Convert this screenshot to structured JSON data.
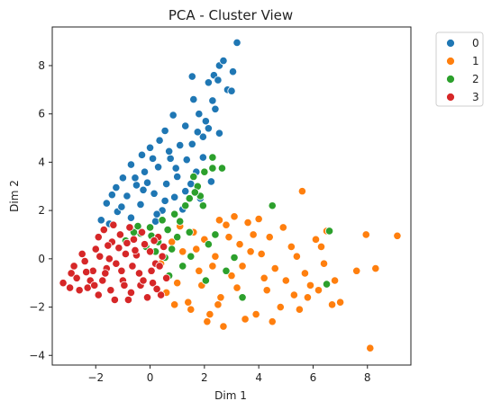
{
  "chart_data": {
    "type": "scatter",
    "title": "PCA - Cluster View",
    "xlabel": "Dim 1",
    "ylabel": "Dim 2",
    "xlim": [
      -3.6,
      9.6
    ],
    "ylim": [
      -4.4,
      9.6
    ],
    "xticks": [
      -2,
      0,
      2,
      4,
      6,
      8
    ],
    "yticks": [
      -4,
      -2,
      0,
      2,
      4,
      6,
      8
    ],
    "xtick_labels": [
      "−2",
      "0",
      "2",
      "4",
      "6",
      "8"
    ],
    "ytick_labels": [
      "−4",
      "−2",
      "0",
      "2",
      "4",
      "6",
      "8"
    ],
    "grid": false,
    "legend_position": "outside-top-right",
    "series": [
      {
        "name": "0",
        "color": "#1f77b4",
        "points": [
          [
            3.2,
            8.95
          ],
          [
            2.55,
            8.0
          ],
          [
            2.7,
            8.2
          ],
          [
            3.05,
            7.75
          ],
          [
            1.55,
            7.55
          ],
          [
            2.35,
            7.6
          ],
          [
            2.15,
            7.3
          ],
          [
            2.5,
            7.4
          ],
          [
            2.85,
            7.0
          ],
          [
            3.0,
            6.95
          ],
          [
            1.6,
            6.6
          ],
          [
            2.3,
            6.55
          ],
          [
            1.8,
            6.0
          ],
          [
            2.4,
            6.2
          ],
          [
            0.85,
            5.95
          ],
          [
            1.3,
            5.5
          ],
          [
            2.15,
            5.4
          ],
          [
            0.55,
            5.3
          ],
          [
            1.95,
            5.05
          ],
          [
            2.55,
            5.2
          ],
          [
            0.35,
            4.9
          ],
          [
            1.55,
            4.75
          ],
          [
            0.0,
            4.6
          ],
          [
            1.1,
            4.7
          ],
          [
            -0.3,
            4.3
          ],
          [
            0.75,
            4.15
          ],
          [
            1.35,
            4.1
          ],
          [
            -0.7,
            3.9
          ],
          [
            0.3,
            3.8
          ],
          [
            -0.2,
            3.6
          ],
          [
            1.0,
            3.4
          ],
          [
            -1.0,
            3.35
          ],
          [
            0.6,
            3.1
          ],
          [
            -0.5,
            3.05
          ],
          [
            -1.25,
            2.95
          ],
          [
            0.15,
            2.7
          ],
          [
            -0.85,
            2.6
          ],
          [
            0.9,
            2.55
          ],
          [
            -1.6,
            2.3
          ],
          [
            -0.35,
            2.25
          ],
          [
            0.45,
            2.0
          ],
          [
            -1.2,
            1.95
          ],
          [
            -1.8,
            1.6
          ],
          [
            -0.7,
            1.7
          ],
          [
            0.2,
            1.55
          ],
          [
            -1.5,
            1.45
          ],
          [
            1.3,
            2.8
          ],
          [
            1.7,
            3.6
          ],
          [
            1.95,
            4.2
          ],
          [
            2.25,
            3.2
          ],
          [
            -0.1,
            3.15
          ],
          [
            0.55,
            2.4
          ],
          [
            -1.05,
            2.15
          ],
          [
            1.2,
            2.05
          ],
          [
            1.85,
            2.5
          ],
          [
            0.1,
            4.15
          ],
          [
            -0.55,
            3.35
          ],
          [
            0.95,
            3.75
          ],
          [
            1.5,
            3.1
          ],
          [
            -1.4,
            2.65
          ],
          [
            0.7,
            4.45
          ],
          [
            0.25,
            1.85
          ],
          [
            -0.25,
            2.85
          ],
          [
            2.05,
            5.7
          ],
          [
            1.75,
            5.25
          ]
        ]
      },
      {
        "name": "1",
        "color": "#ff7f0e",
        "points": [
          [
            5.6,
            2.8
          ],
          [
            9.1,
            0.95
          ],
          [
            8.1,
            -3.7
          ],
          [
            7.95,
            1.0
          ],
          [
            8.3,
            -0.4
          ],
          [
            7.6,
            -0.5
          ],
          [
            6.8,
            -0.9
          ],
          [
            6.5,
            1.15
          ],
          [
            6.7,
            -1.9
          ],
          [
            6.1,
            0.8
          ],
          [
            6.4,
            -0.2
          ],
          [
            5.9,
            -1.1
          ],
          [
            5.5,
            -2.1
          ],
          [
            5.2,
            0.5
          ],
          [
            4.9,
            1.3
          ],
          [
            4.6,
            -0.4
          ],
          [
            4.3,
            -1.3
          ],
          [
            4.1,
            0.2
          ],
          [
            3.8,
            1.0
          ],
          [
            3.5,
            -2.5
          ],
          [
            3.3,
            0.6
          ],
          [
            3.0,
            -0.7
          ],
          [
            2.8,
            1.4
          ],
          [
            2.6,
            -1.6
          ],
          [
            2.4,
            0.1
          ],
          [
            2.2,
            -2.3
          ],
          [
            2.0,
            0.8
          ],
          [
            1.8,
            -0.5
          ],
          [
            1.6,
            1.1
          ],
          [
            1.4,
            -1.8
          ],
          [
            1.2,
            0.3
          ],
          [
            1.0,
            -1.0
          ],
          [
            0.8,
            0.7
          ],
          [
            0.6,
            -1.4
          ],
          [
            0.4,
            -0.2
          ],
          [
            1.1,
            1.35
          ],
          [
            2.55,
            1.6
          ],
          [
            3.1,
            1.75
          ],
          [
            3.6,
            1.5
          ],
          [
            4.0,
            1.65
          ],
          [
            4.8,
            -2.0
          ],
          [
            5.3,
            -1.5
          ],
          [
            5.7,
            -0.6
          ],
          [
            6.2,
            -1.3
          ],
          [
            7.0,
            -1.8
          ],
          [
            2.7,
            -2.8
          ],
          [
            2.1,
            -2.6
          ],
          [
            3.9,
            -2.3
          ],
          [
            4.5,
            -2.6
          ],
          [
            5.0,
            -0.9
          ],
          [
            3.2,
            -1.2
          ],
          [
            2.3,
            -0.3
          ],
          [
            1.5,
            -2.1
          ],
          [
            3.7,
            0.3
          ],
          [
            4.2,
            -0.8
          ],
          [
            2.9,
            0.9
          ],
          [
            1.9,
            -1.1
          ],
          [
            5.4,
            0.1
          ],
          [
            6.3,
            0.5
          ],
          [
            4.4,
            0.9
          ],
          [
            3.4,
            -0.3
          ],
          [
            2.5,
            -1.9
          ],
          [
            1.7,
            0.4
          ],
          [
            0.9,
            -1.9
          ],
          [
            5.8,
            -1.6
          ]
        ]
      },
      {
        "name": "2",
        "color": "#2ca02c",
        "points": [
          [
            2.3,
            3.75
          ],
          [
            2.65,
            3.75
          ],
          [
            2.3,
            4.2
          ],
          [
            2.0,
            3.6
          ],
          [
            1.6,
            3.4
          ],
          [
            1.75,
            3.0
          ],
          [
            1.85,
            2.6
          ],
          [
            1.45,
            2.5
          ],
          [
            1.3,
            2.2
          ],
          [
            1.95,
            2.2
          ],
          [
            0.9,
            1.85
          ],
          [
            0.45,
            1.6
          ],
          [
            0.0,
            1.3
          ],
          [
            -0.35,
            1.05
          ],
          [
            0.65,
            1.2
          ],
          [
            0.3,
            0.7
          ],
          [
            -0.15,
            0.5
          ],
          [
            1.0,
            0.9
          ],
          [
            1.5,
            0.1
          ],
          [
            2.15,
            0.6
          ],
          [
            4.5,
            2.2
          ],
          [
            6.6,
            1.15
          ],
          [
            6.5,
            -1.05
          ],
          [
            3.1,
            0.05
          ],
          [
            2.8,
            -0.5
          ],
          [
            -0.6,
            1.1
          ],
          [
            -0.9,
            0.75
          ],
          [
            0.8,
            0.4
          ],
          [
            1.2,
            -0.3
          ],
          [
            2.4,
            1.0
          ],
          [
            1.65,
            2.75
          ],
          [
            0.05,
            0.95
          ],
          [
            -0.45,
            1.35
          ],
          [
            1.1,
            1.55
          ],
          [
            0.55,
            0.05
          ],
          [
            3.4,
            -1.6
          ],
          [
            2.05,
            -0.9
          ],
          [
            0.7,
            -0.7
          ],
          [
            1.45,
            1.1
          ],
          [
            0.2,
            0.3
          ]
        ]
      },
      {
        "name": "3",
        "color": "#d62728",
        "points": [
          [
            -3.2,
            -1.0
          ],
          [
            -2.9,
            -0.6
          ],
          [
            -2.6,
            -1.3
          ],
          [
            -2.4,
            -0.1
          ],
          [
            -2.2,
            -0.9
          ],
          [
            -2.0,
            0.4
          ],
          [
            -1.9,
            -1.5
          ],
          [
            -1.7,
            1.2
          ],
          [
            -1.6,
            -0.4
          ],
          [
            -1.4,
            0.7
          ],
          [
            -1.3,
            -1.7
          ],
          [
            -1.1,
            1.0
          ],
          [
            -1.0,
            -0.9
          ],
          [
            -0.9,
            0.2
          ],
          [
            -0.7,
            -1.4
          ],
          [
            -0.6,
            0.8
          ],
          [
            -0.4,
            -0.6
          ],
          [
            -0.3,
            1.1
          ],
          [
            -0.1,
            -1.6
          ],
          [
            0.0,
            0.3
          ],
          [
            0.1,
            -1.0
          ],
          [
            0.2,
            -0.2
          ],
          [
            0.3,
            0.9
          ],
          [
            0.4,
            -1.5
          ],
          [
            0.5,
            0.5
          ],
          [
            0.6,
            -0.8
          ],
          [
            -2.7,
            -0.8
          ],
          [
            -2.5,
            0.2
          ],
          [
            -2.3,
            -1.2
          ],
          [
            -2.1,
            -0.5
          ],
          [
            -1.85,
            0.1
          ],
          [
            -1.75,
            -0.9
          ],
          [
            -1.55,
            0.55
          ],
          [
            -1.45,
            -1.3
          ],
          [
            -1.25,
            -0.2
          ],
          [
            -1.15,
            0.45
          ],
          [
            -0.95,
            -1.1
          ],
          [
            -0.85,
            0.65
          ],
          [
            -0.65,
            -0.3
          ],
          [
            -0.5,
            0.15
          ],
          [
            -0.35,
            -1.1
          ],
          [
            -0.2,
            0.6
          ],
          [
            0.05,
            -0.5
          ],
          [
            0.25,
            -1.25
          ],
          [
            0.45,
            0.1
          ],
          [
            -2.95,
            -1.2
          ],
          [
            -2.8,
            -0.3
          ],
          [
            -1.9,
            0.9
          ],
          [
            -1.65,
            -0.6
          ],
          [
            -1.35,
            1.4
          ],
          [
            -1.05,
            -0.5
          ],
          [
            -0.8,
            -1.7
          ],
          [
            -0.55,
            0.35
          ],
          [
            -0.25,
            -0.9
          ],
          [
            0.15,
            0.75
          ],
          [
            -2.35,
            -0.55
          ],
          [
            -2.05,
            -1.1
          ],
          [
            -1.5,
            0.0
          ],
          [
            -0.75,
            1.3
          ],
          [
            0.35,
            -0.3
          ]
        ]
      }
    ]
  }
}
